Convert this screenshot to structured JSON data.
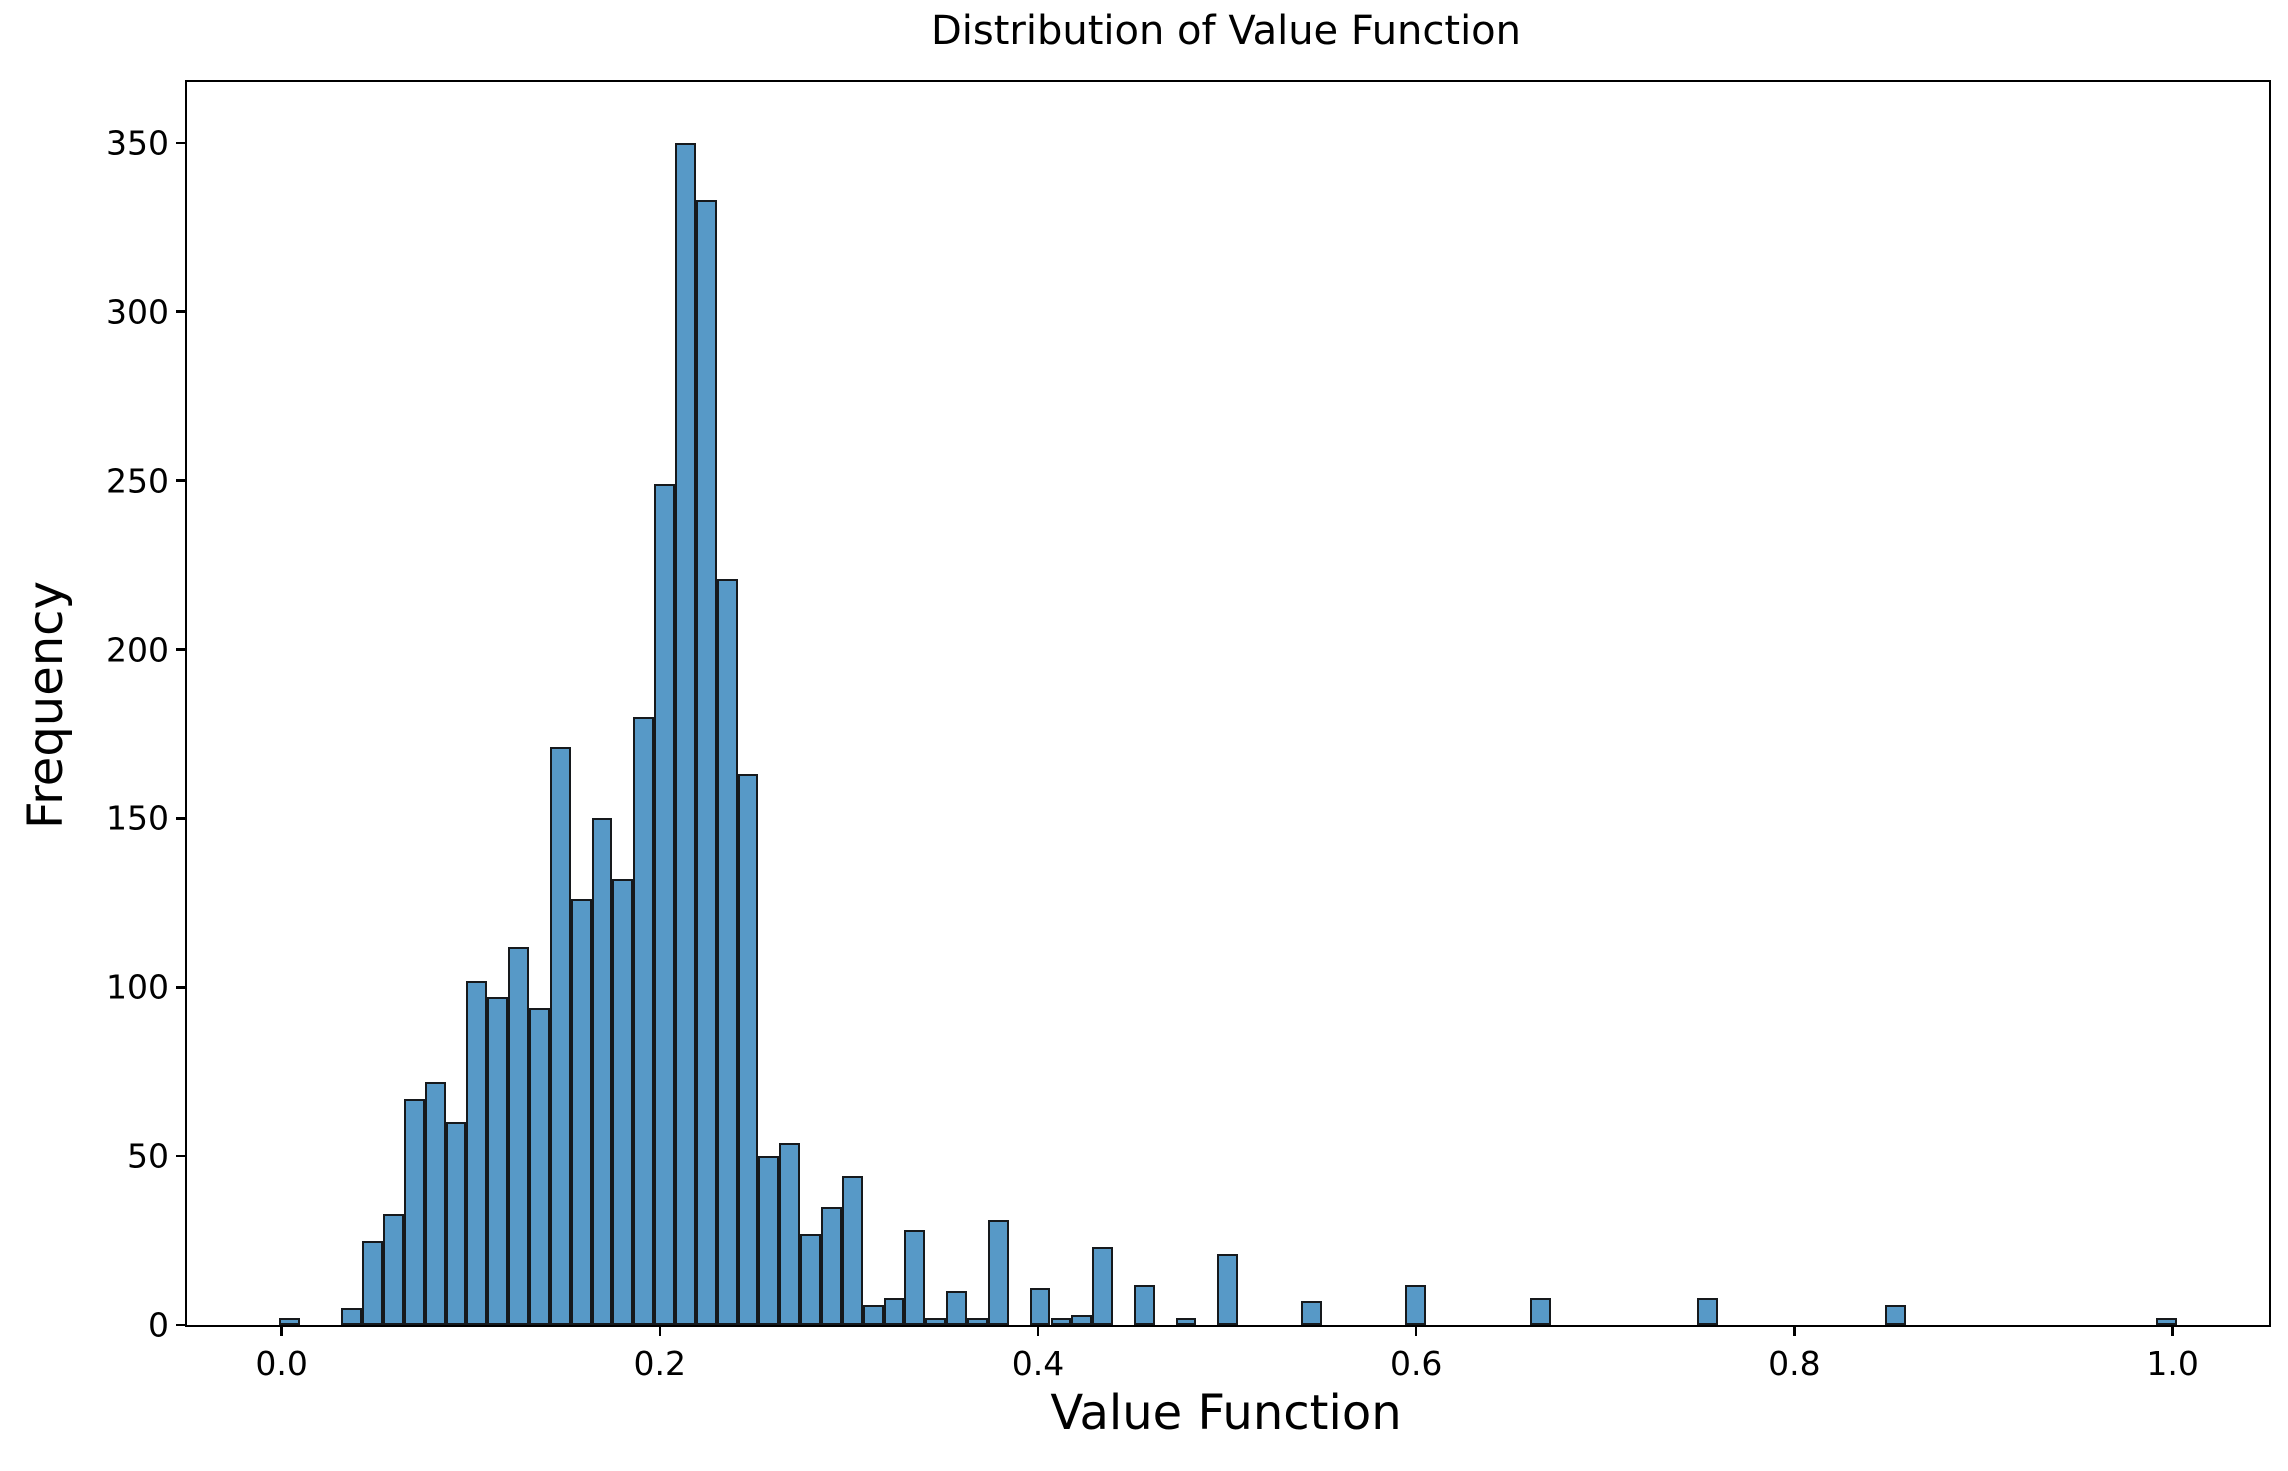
{
  "title": "Distribution of Value Function",
  "colors": {
    "bar_fill": "#5799c7",
    "bar_edge": "#16191c",
    "spine": "#000000",
    "text": "#000000",
    "background": "#ffffff"
  },
  "chart_data": {
    "type": "bar",
    "subtype": "histogram",
    "title": "Distribution of Value Function",
    "xlabel": "Value Function",
    "ylabel": "Frequency",
    "grid": false,
    "legend": "none",
    "xlim": [
      -0.05,
      1.051
    ],
    "ylim": [
      0,
      368
    ],
    "x_tick_values": [
      0.0,
      0.2,
      0.4,
      0.6,
      0.8,
      1.0
    ],
    "x_tick_labels": [
      "0.0",
      "0.2",
      "0.4",
      "0.6",
      "0.8",
      "1.0"
    ],
    "y_tick_values": [
      0,
      50,
      100,
      150,
      200,
      250,
      300,
      350
    ],
    "y_tick_labels": [
      "0",
      "50",
      "100",
      "150",
      "200",
      "250",
      "300",
      "350"
    ],
    "bin_start": -0.0015,
    "bin_width": 0.01103,
    "frequencies": [
      2,
      0,
      0,
      5,
      25,
      33,
      67,
      72,
      60,
      102,
      97,
      112,
      94,
      171,
      126,
      150,
      132,
      180,
      249,
      350,
      333,
      221,
      163,
      50,
      54,
      27,
      35,
      44,
      6,
      8,
      28,
      2,
      10,
      2,
      31,
      0,
      11,
      2,
      3,
      23,
      0,
      12,
      0,
      2,
      0,
      21,
      0,
      0,
      0,
      7,
      0,
      0,
      0,
      0,
      12,
      0,
      0,
      0,
      0,
      0,
      8,
      0,
      0,
      0,
      0,
      0,
      0,
      0,
      8,
      0,
      0,
      0,
      0,
      0,
      0,
      0,
      0,
      6,
      0,
      0,
      0,
      0,
      0,
      0,
      0,
      0,
      0,
      0,
      0,
      0,
      2
    ]
  }
}
